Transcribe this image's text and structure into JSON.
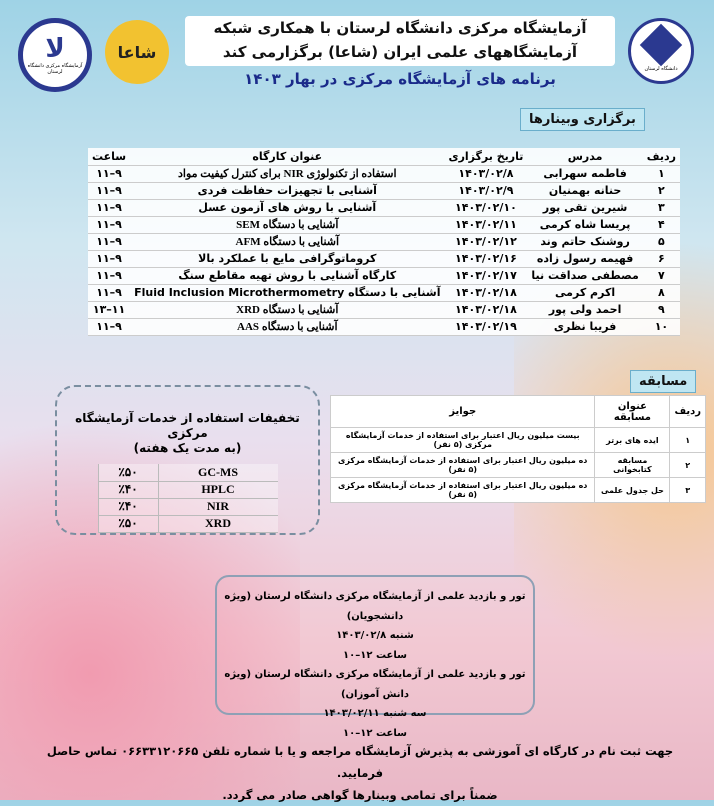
{
  "header": {
    "title_line1": "آزمایشگاه مرکزی دانشگاه لرستان با همکاری شبکه",
    "title_line2": "آزمایشگاههای علمی ایران (شاعا) برگزارمی کند",
    "subtitle": "برنامه های آزمایشگاه مرکزی در بهار ۱۴۰۳",
    "logo_left_caption": "آزمایشگاه مرکزی دانشگاه لرستان",
    "logo_right_caption": "دانشگاه لرستان",
    "logo_shaa": "شاعا"
  },
  "workshops": {
    "section_label": "برگزاری وبینارها",
    "columns": [
      "ردیف",
      "مدرس",
      "تاریخ برگزاری",
      "عنوان کارگاه",
      "ساعت"
    ],
    "rows": [
      [
        "۱",
        "فاطمه سهرابی",
        "۱۴۰۳/۰۲/۸",
        "استفاده از تکنولوژی NIR برای کنترل کیفیت مواد",
        "۹–۱۱"
      ],
      [
        "۲",
        "حنانه بهمنیان",
        "۱۴۰۳/۰۲/۹",
        "آشنایی با تجهیزات حفاظت فردی",
        "۹–۱۱"
      ],
      [
        "۳",
        "شیرین تقی پور",
        "۱۴۰۳/۰۲/۱۰",
        "آشنایی با روش های آزمون عسل",
        "۹–۱۱"
      ],
      [
        "۴",
        "پریسا شاه کرمی",
        "۱۴۰۳/۰۲/۱۱",
        "آشنایی با دستگاه SEM",
        "۹–۱۱"
      ],
      [
        "۵",
        "روشنک حاتم وند",
        "۱۴۰۳/۰۲/۱۲",
        "آشنایی با دستگاه AFM",
        "۹–۱۱"
      ],
      [
        "۶",
        "فهیمه رسول زاده",
        "۱۴۰۳/۰۲/۱۶",
        "کروماتوگرافی مایع با عملکرد بالا",
        "۹–۱۱"
      ],
      [
        "۷",
        "مصطفی صداقت نیا",
        "۱۴۰۳/۰۲/۱۷",
        "کارگاه آشنایی با روش تهیه مقاطع سنگ",
        "۹–۱۱"
      ],
      [
        "۸",
        "اکرم کرمی",
        "۱۴۰۳/۰۲/۱۸",
        "آشنایی با دستگاه Fluid Inclusion Microthermometry",
        "۹–۱۱"
      ],
      [
        "۹",
        "احمد ولی پور",
        "۱۴۰۳/۰۲/۱۸",
        "آشنایی با دستگاه XRD",
        "۱۱–۱۳"
      ],
      [
        "۱۰",
        "فریبا نظری",
        "۱۴۰۳/۰۲/۱۹",
        "آشنایی با دستگاه AAS",
        "۹–۱۱"
      ]
    ]
  },
  "competition": {
    "section_label": "مسابقه",
    "columns": [
      "ردیف",
      "عنوان مسابقه",
      "جوایز"
    ],
    "rows": [
      [
        "۱",
        "ایده های برتر",
        "بیست میلیون ریال اعتبار برای استفاده از خدمات آزمایشگاه مرکزی (۵ نفر)"
      ],
      [
        "۲",
        "مسابقه کتابخوانی",
        "ده میلیون ریال اعتبار برای استفاده از خدمات آزمایشگاه مرکزی (۵ نفر)"
      ],
      [
        "۳",
        "حل جدول علمی",
        "ده میلیون ریال اعتبار برای استفاده از خدمات آزمایشگاه مرکزی (۵ نفر)"
      ]
    ]
  },
  "discounts": {
    "title": "تخفیفات استفاده از خدمات آزمایشگاه مرکزی",
    "subtitle": "(به مدت یک هفته)",
    "rows": [
      [
        "GC-MS",
        "٪۵۰"
      ],
      [
        "HPLC",
        "٪۴۰"
      ],
      [
        "NIR",
        "٪۴۰"
      ],
      [
        "XRD",
        "٪۵۰"
      ]
    ]
  },
  "tour": {
    "lines": [
      "تور و بازدید علمی از آزمایشگاه مرکزی دانشگاه لرستان (ویژه دانشجویان)",
      "شنبه ۱۴۰۳/۰۲/۸",
      "ساعت ۱۲–۱۰",
      "تور و بازدید علمی از آزمایشگاه مرکزی دانشگاه لرستان (ویژه دانش آموزان)",
      "سه شنبه ۱۴۰۳/۰۲/۱۱",
      "ساعت ۱۲–۱۰"
    ]
  },
  "footer": {
    "line1": "جهت ثبت نام در کارگاه ای آموزشی به پذیرش آزمایشگاه مراجعه و یا با شماره تلفن ۰۶۶۳۳۱۲۰۶۶۵ تماس حاصل فرمایید.",
    "line2": "ضمناً برای تمامی وبینارها گواهی صادر می گردد."
  },
  "colors": {
    "title_blue": "#1a2a8a",
    "badge_bg": "#bfe6f2",
    "shaa_yellow": "#f2c230",
    "logo_blue": "#2b3990"
  }
}
